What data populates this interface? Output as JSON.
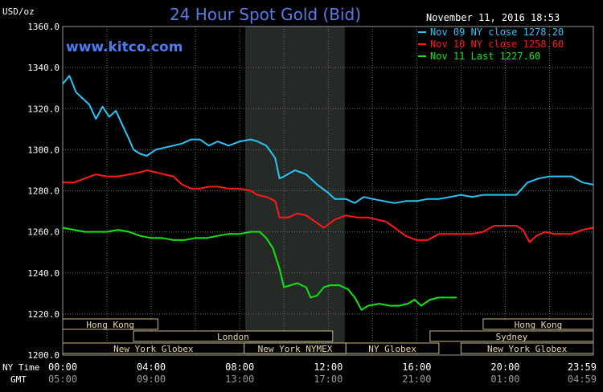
{
  "chart_data": {
    "type": "line",
    "title": "24 Hour Spot Gold (Bid)",
    "ylabel": "USD/oz",
    "timestamp": "November 11, 2016 18:53",
    "watermark": "www.kitco.com",
    "ylim": [
      1200,
      1360
    ],
    "yticks": [
      "1360.0",
      "1340.0",
      "1320.0",
      "1300.0",
      "1280.0",
      "1260.0",
      "1240.0",
      "1220.0",
      "1200.0"
    ],
    "ytick_values": [
      1360,
      1340,
      1320,
      1300,
      1280,
      1260,
      1240,
      1220,
      1200
    ],
    "x_row_labels": [
      "NY Time",
      "GMT"
    ],
    "xticks_ny": [
      "00:00",
      "04:00",
      "08:00",
      "12:00",
      "16:00",
      "20:00",
      "23:59"
    ],
    "xticks_gmt": [
      "05:00",
      "09:00",
      "13:00",
      "17:00",
      "21:00",
      "01:00",
      "04:59"
    ],
    "xtick_hours": [
      0,
      4,
      8,
      12,
      16,
      20,
      23.98
    ],
    "nymex_session_hours": [
      8.25,
      12.75
    ],
    "grid": true,
    "legend_position": "top-right",
    "series": [
      {
        "name": "Nov 09 NY close 1278.20",
        "color": "#29c5f6",
        "points": [
          [
            0,
            1332
          ],
          [
            0.3,
            1336
          ],
          [
            0.6,
            1328
          ],
          [
            0.9,
            1325
          ],
          [
            1.2,
            1322
          ],
          [
            1.5,
            1315
          ],
          [
            1.8,
            1321
          ],
          [
            2.1,
            1316
          ],
          [
            2.4,
            1319
          ],
          [
            2.7,
            1312
          ],
          [
            3.0,
            1305
          ],
          [
            3.2,
            1300
          ],
          [
            3.5,
            1298
          ],
          [
            3.8,
            1297
          ],
          [
            4.2,
            1300
          ],
          [
            4.6,
            1301
          ],
          [
            5.0,
            1302
          ],
          [
            5.4,
            1303
          ],
          [
            5.8,
            1305
          ],
          [
            6.2,
            1305
          ],
          [
            6.6,
            1302
          ],
          [
            7.0,
            1304
          ],
          [
            7.5,
            1302
          ],
          [
            8.0,
            1304
          ],
          [
            8.5,
            1305
          ],
          [
            8.8,
            1304
          ],
          [
            9.2,
            1302
          ],
          [
            9.6,
            1296
          ],
          [
            9.8,
            1286
          ],
          [
            10.0,
            1287
          ],
          [
            10.5,
            1290
          ],
          [
            11.0,
            1288
          ],
          [
            11.5,
            1283
          ],
          [
            12.0,
            1279
          ],
          [
            12.3,
            1276
          ],
          [
            12.8,
            1276
          ],
          [
            13.2,
            1274
          ],
          [
            13.6,
            1277
          ],
          [
            14.0,
            1276
          ],
          [
            14.5,
            1275
          ],
          [
            15.0,
            1274
          ],
          [
            15.5,
            1275
          ],
          [
            16.0,
            1275
          ],
          [
            16.5,
            1276
          ],
          [
            17.0,
            1276
          ],
          [
            17.5,
            1277
          ],
          [
            18.0,
            1278
          ],
          [
            18.5,
            1277
          ],
          [
            19.0,
            1278
          ],
          [
            19.5,
            1278
          ],
          [
            20.0,
            1278
          ],
          [
            20.5,
            1278
          ],
          [
            21.0,
            1284
          ],
          [
            21.5,
            1286
          ],
          [
            22.0,
            1287
          ],
          [
            22.5,
            1287
          ],
          [
            23.0,
            1287
          ],
          [
            23.5,
            1284
          ],
          [
            23.98,
            1283
          ]
        ]
      },
      {
        "name": "Nov 10 NY close 1258.60",
        "color": "#ff1a1a",
        "points": [
          [
            0,
            1284
          ],
          [
            0.5,
            1284
          ],
          [
            1.0,
            1286
          ],
          [
            1.5,
            1288
          ],
          [
            2.0,
            1287
          ],
          [
            2.5,
            1287
          ],
          [
            3.0,
            1288
          ],
          [
            3.5,
            1289
          ],
          [
            3.8,
            1290
          ],
          [
            4.2,
            1289
          ],
          [
            4.6,
            1288
          ],
          [
            5.0,
            1287
          ],
          [
            5.4,
            1283
          ],
          [
            5.8,
            1281
          ],
          [
            6.2,
            1281
          ],
          [
            6.6,
            1282
          ],
          [
            7.0,
            1282
          ],
          [
            7.5,
            1281
          ],
          [
            8.0,
            1281
          ],
          [
            8.5,
            1280
          ],
          [
            8.8,
            1278
          ],
          [
            9.2,
            1277
          ],
          [
            9.6,
            1275
          ],
          [
            9.8,
            1267
          ],
          [
            10.2,
            1267
          ],
          [
            10.6,
            1269
          ],
          [
            11.0,
            1268
          ],
          [
            11.4,
            1265
          ],
          [
            11.8,
            1262
          ],
          [
            12.3,
            1266
          ],
          [
            12.8,
            1268
          ],
          [
            13.3,
            1267
          ],
          [
            13.8,
            1267
          ],
          [
            14.2,
            1266
          ],
          [
            14.6,
            1265
          ],
          [
            15.0,
            1262
          ],
          [
            15.5,
            1258
          ],
          [
            16.0,
            1256
          ],
          [
            16.5,
            1256
          ],
          [
            17.0,
            1259
          ],
          [
            17.5,
            1259
          ],
          [
            18.0,
            1259
          ],
          [
            18.5,
            1259
          ],
          [
            19.0,
            1260
          ],
          [
            19.5,
            1263
          ],
          [
            20.0,
            1263
          ],
          [
            20.5,
            1263
          ],
          [
            20.8,
            1261
          ],
          [
            21.1,
            1255
          ],
          [
            21.4,
            1258
          ],
          [
            21.8,
            1260
          ],
          [
            22.2,
            1259
          ],
          [
            22.6,
            1259
          ],
          [
            23.0,
            1259
          ],
          [
            23.5,
            1261
          ],
          [
            23.98,
            1262
          ]
        ]
      },
      {
        "name": "Nov 11 Last 1227.60",
        "color": "#11e611",
        "points": [
          [
            0,
            1262
          ],
          [
            0.5,
            1261
          ],
          [
            1.0,
            1260
          ],
          [
            1.5,
            1260
          ],
          [
            2.0,
            1260
          ],
          [
            2.5,
            1261
          ],
          [
            3.0,
            1260
          ],
          [
            3.5,
            1258
          ],
          [
            4.0,
            1257
          ],
          [
            4.5,
            1257
          ],
          [
            5.0,
            1256
          ],
          [
            5.5,
            1256
          ],
          [
            6.0,
            1257
          ],
          [
            6.5,
            1257
          ],
          [
            7.0,
            1258
          ],
          [
            7.5,
            1259
          ],
          [
            8.0,
            1259
          ],
          [
            8.5,
            1260
          ],
          [
            8.9,
            1260
          ],
          [
            9.2,
            1257
          ],
          [
            9.5,
            1252
          ],
          [
            9.8,
            1242
          ],
          [
            10.0,
            1233
          ],
          [
            10.3,
            1234
          ],
          [
            10.6,
            1235
          ],
          [
            11.0,
            1233
          ],
          [
            11.2,
            1228
          ],
          [
            11.5,
            1229
          ],
          [
            11.8,
            1233
          ],
          [
            12.1,
            1234
          ],
          [
            12.5,
            1234
          ],
          [
            12.9,
            1232
          ],
          [
            13.2,
            1228
          ],
          [
            13.5,
            1222
          ],
          [
            13.8,
            1224
          ],
          [
            14.3,
            1225
          ],
          [
            14.8,
            1224
          ],
          [
            15.2,
            1224
          ],
          [
            15.6,
            1225
          ],
          [
            15.9,
            1227
          ],
          [
            16.2,
            1224
          ],
          [
            16.6,
            1227
          ],
          [
            17.0,
            1228
          ],
          [
            17.5,
            1228
          ],
          [
            17.8,
            1228
          ]
        ]
      }
    ],
    "sessions": [
      {
        "label": "Hong Kong",
        "start": 0,
        "end": 4.3,
        "row": 0
      },
      {
        "label": "London",
        "start": 3.2,
        "end": 12.2,
        "row": 1
      },
      {
        "label": "New York Globex",
        "start": 0,
        "end": 8.2,
        "row": 2
      },
      {
        "label": "New York NYMEX",
        "start": 8.2,
        "end": 12.8,
        "row": 2
      },
      {
        "label": "NY Globex",
        "start": 12.8,
        "end": 17.0,
        "row": 2
      },
      {
        "label": "Sydney",
        "start": 16.6,
        "end": 23.98,
        "row": 1
      },
      {
        "label": "Hong Kong",
        "start": 19.0,
        "end": 23.98,
        "row": 0
      },
      {
        "label": "New York Globex",
        "start": 18.0,
        "end": 23.98,
        "row": 2
      }
    ]
  }
}
